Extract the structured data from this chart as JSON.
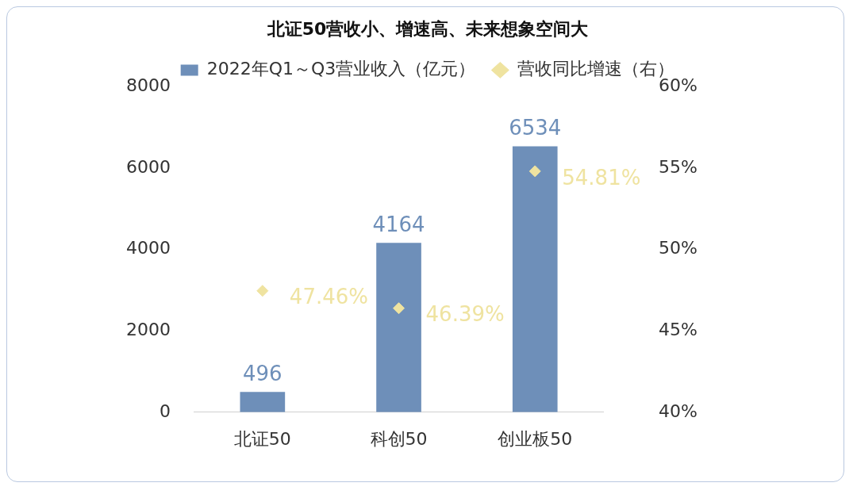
{
  "chart_data": {
    "type": "bar",
    "title": "北证50营收小、增速高、未来想象空间大",
    "categories": [
      "北证50",
      "科创50",
      "创业板50"
    ],
    "series": [
      {
        "name": "2022年Q1～Q3营业收入（亿元）",
        "color": "#6e8fb9",
        "values": [
          496,
          4164,
          6534
        ],
        "value_labels": [
          "496",
          "4164",
          "6534"
        ]
      },
      {
        "name": "营收同比增速（右）",
        "type": "scatter",
        "axis": "y2",
        "color": "#efe3a0",
        "values": [
          47.46,
          46.39,
          54.81
        ],
        "value_labels": [
          "47.46%",
          "46.39%",
          "54.81%"
        ]
      }
    ],
    "marker": "diamond",
    "legend": "top",
    "grid": false,
    "ylim": [
      0,
      8000
    ],
    "yticks": [
      0,
      2000,
      4000,
      6000,
      8000
    ],
    "y2lim": [
      40,
      60
    ],
    "y2ticks": [
      {
        "value": 40,
        "label": "40%"
      },
      {
        "value": 45,
        "label": "45%"
      },
      {
        "value": 50,
        "label": "50%"
      },
      {
        "value": 55,
        "label": "55%"
      },
      {
        "value": 60,
        "label": "60%"
      }
    ]
  }
}
